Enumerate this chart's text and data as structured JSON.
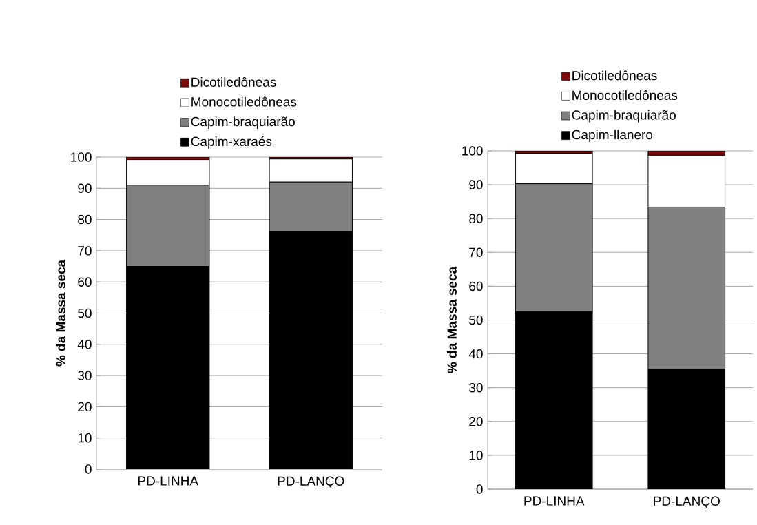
{
  "chart_data": [
    {
      "type": "bar",
      "stacked": true,
      "ylabel": "% da Massa seca",
      "categories": [
        "PD-LINHA",
        "PD-LANÇO"
      ],
      "ylim": [
        0,
        100
      ],
      "yticks": [
        0,
        10,
        20,
        30,
        40,
        50,
        60,
        70,
        80,
        90,
        100
      ],
      "grid": "y",
      "legend": "top",
      "series": [
        {
          "name": "Capim-xaraés",
          "color": "#000000",
          "values": [
            65,
            76
          ]
        },
        {
          "name": "Capim-braquiarão",
          "color": "#808080",
          "values": [
            26,
            16
          ]
        },
        {
          "name": "Monocotiledôneas",
          "color": "#ffffff",
          "values": [
            8.2,
            7.4
          ]
        },
        {
          "name": "Dicotiledôneas",
          "color": "#7b0c0c",
          "values": [
            0.8,
            0.6
          ]
        }
      ]
    },
    {
      "type": "bar",
      "stacked": true,
      "ylabel": "% da Massa seca",
      "categories": [
        "PD-LINHA",
        "PD-LANÇO"
      ],
      "ylim": [
        0,
        100
      ],
      "yticks": [
        0,
        10,
        20,
        30,
        40,
        50,
        60,
        70,
        80,
        90,
        100
      ],
      "grid": "y",
      "legend": "top",
      "series": [
        {
          "name": "Capim-llanero",
          "color": "#000000",
          "values": [
            52.5,
            35.5
          ]
        },
        {
          "name": "Capim-braquiarão",
          "color": "#808080",
          "values": [
            37.8,
            47.9
          ]
        },
        {
          "name": "Monocotiledôneas",
          "color": "#ffffff",
          "values": [
            8.9,
            15.3
          ]
        },
        {
          "name": "Dicotiledôneas",
          "color": "#7b0c0c",
          "values": [
            0.8,
            1.3
          ]
        }
      ]
    }
  ]
}
